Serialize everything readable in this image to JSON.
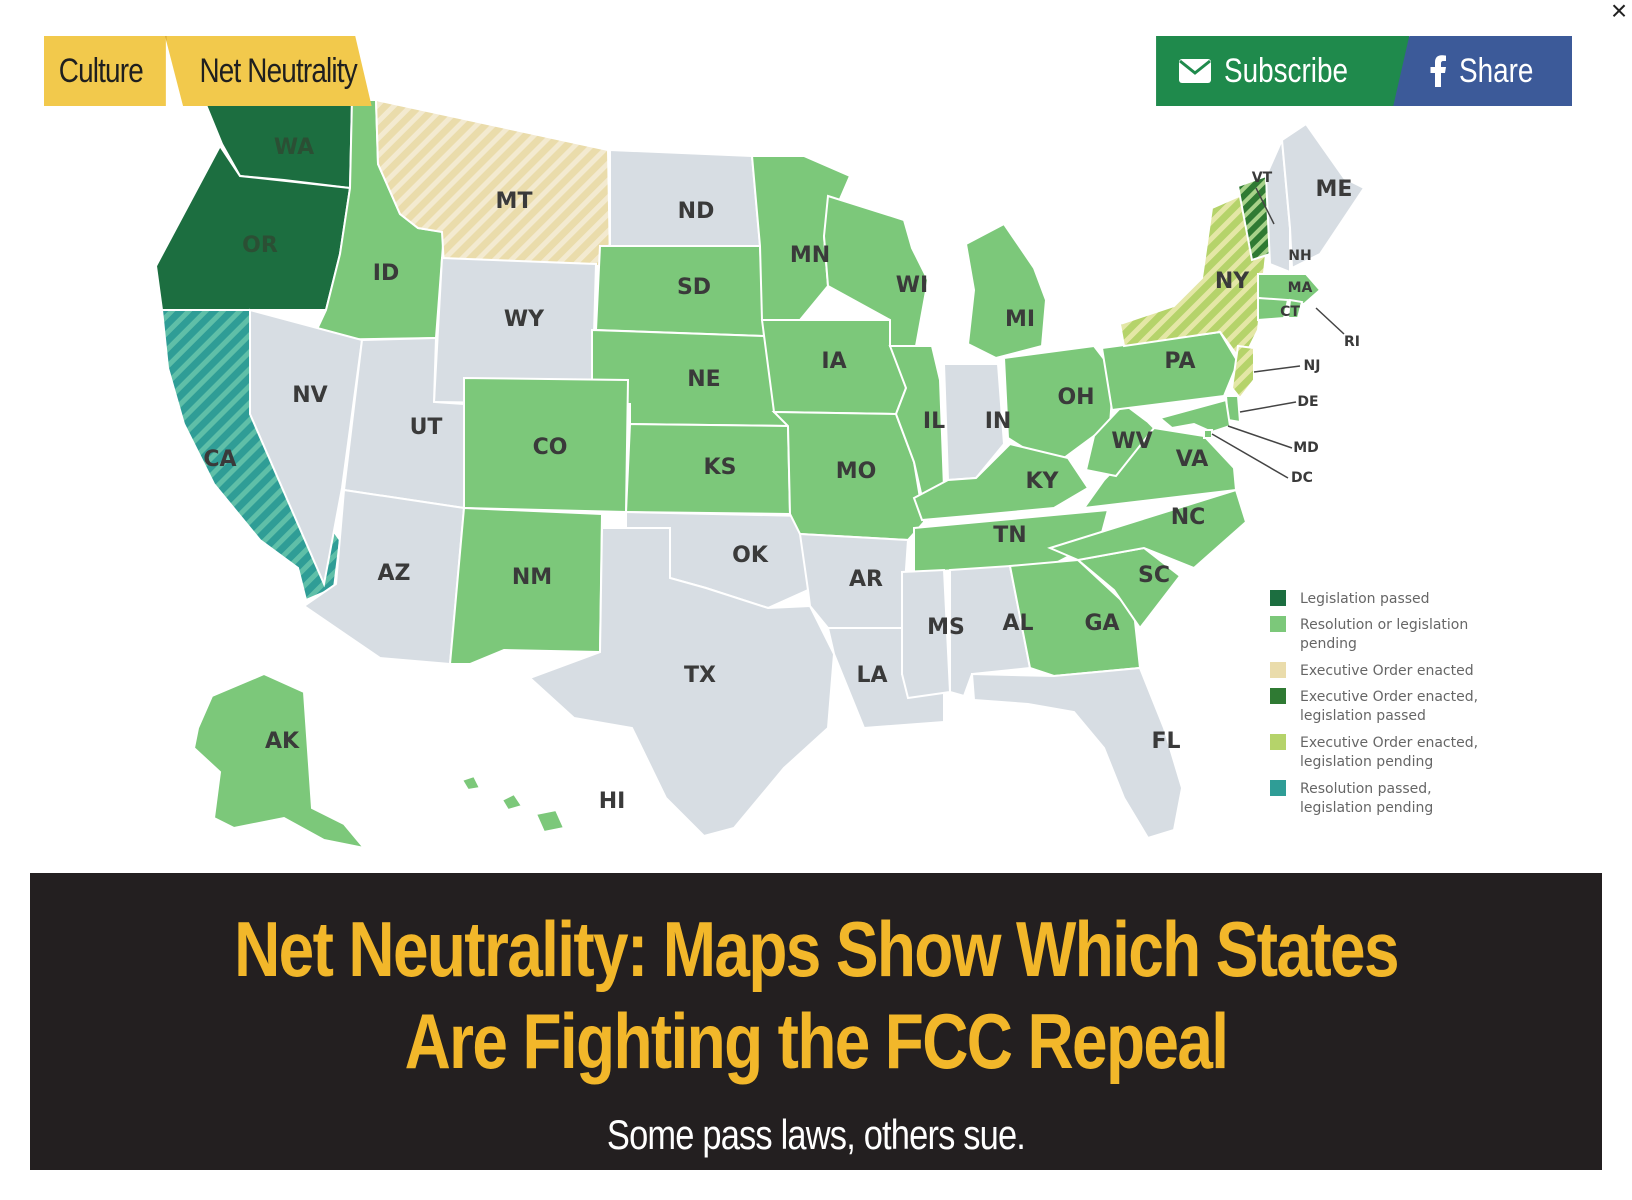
{
  "close": {
    "icon": "close-icon",
    "glyph": "×"
  },
  "breadcrumb": [
    {
      "label": "Culture"
    },
    {
      "label": "Net Neutrality"
    }
  ],
  "share_bar": {
    "subscribe_label": "Subscribe",
    "share_label": "Share",
    "subscribe_icon": "envelope-icon",
    "share_icon": "facebook-icon"
  },
  "map": {
    "colors": {
      "legislation_passed": "#1c6e40",
      "resolution_or_legislation_pending": "#7cc87a",
      "executive_order_enacted": "#eadcab",
      "eo_legislation_passed": "#2f7a33",
      "eo_legislation_pending": "#b5d36a",
      "resolution_passed_legislation_pending": "#2f9d96",
      "no_action": "#d7dde3"
    },
    "states": [
      {
        "code": "WA",
        "status": "legislation_passed"
      },
      {
        "code": "OR",
        "status": "legislation_passed"
      },
      {
        "code": "CA",
        "status": "resolution_passed_legislation_pending"
      },
      {
        "code": "ID",
        "status": "resolution_or_legislation_pending"
      },
      {
        "code": "MT",
        "status": "executive_order_enacted"
      },
      {
        "code": "ND",
        "status": "no_action"
      },
      {
        "code": "MN",
        "status": "resolution_or_legislation_pending"
      },
      {
        "code": "WI",
        "status": "resolution_or_legislation_pending"
      },
      {
        "code": "MI",
        "status": "resolution_or_legislation_pending"
      },
      {
        "code": "NV",
        "status": "no_action"
      },
      {
        "code": "UT",
        "status": "no_action"
      },
      {
        "code": "WY",
        "status": "no_action"
      },
      {
        "code": "SD",
        "status": "resolution_or_legislation_pending"
      },
      {
        "code": "NE",
        "status": "resolution_or_legislation_pending"
      },
      {
        "code": "IA",
        "status": "resolution_or_legislation_pending"
      },
      {
        "code": "IL",
        "status": "resolution_or_legislation_pending"
      },
      {
        "code": "IN",
        "status": "no_action"
      },
      {
        "code": "OH",
        "status": "resolution_or_legislation_pending"
      },
      {
        "code": "PA",
        "status": "resolution_or_legislation_pending"
      },
      {
        "code": "NY",
        "status": "eo_legislation_pending"
      },
      {
        "code": "VT",
        "status": "eo_legislation_passed"
      },
      {
        "code": "NH",
        "status": "no_action"
      },
      {
        "code": "ME",
        "status": "no_action"
      },
      {
        "code": "MA",
        "status": "resolution_or_legislation_pending"
      },
      {
        "code": "CT",
        "status": "resolution_or_legislation_pending"
      },
      {
        "code": "RI",
        "status": "resolution_or_legislation_pending"
      },
      {
        "code": "NJ",
        "status": "eo_legislation_pending"
      },
      {
        "code": "DE",
        "status": "resolution_or_legislation_pending"
      },
      {
        "code": "MD",
        "status": "resolution_or_legislation_pending"
      },
      {
        "code": "DC",
        "status": "resolution_or_legislation_pending"
      },
      {
        "code": "CO",
        "status": "resolution_or_legislation_pending"
      },
      {
        "code": "KS",
        "status": "resolution_or_legislation_pending"
      },
      {
        "code": "MO",
        "status": "resolution_or_legislation_pending"
      },
      {
        "code": "KY",
        "status": "resolution_or_legislation_pending"
      },
      {
        "code": "WV",
        "status": "resolution_or_legislation_pending"
      },
      {
        "code": "VA",
        "status": "resolution_or_legislation_pending"
      },
      {
        "code": "NC",
        "status": "resolution_or_legislation_pending"
      },
      {
        "code": "TN",
        "status": "resolution_or_legislation_pending"
      },
      {
        "code": "SC",
        "status": "resolution_or_legislation_pending"
      },
      {
        "code": "GA",
        "status": "resolution_or_legislation_pending"
      },
      {
        "code": "AZ",
        "status": "no_action"
      },
      {
        "code": "NM",
        "status": "resolution_or_legislation_pending"
      },
      {
        "code": "OK",
        "status": "no_action"
      },
      {
        "code": "AR",
        "status": "no_action"
      },
      {
        "code": "TX",
        "status": "no_action"
      },
      {
        "code": "LA",
        "status": "no_action"
      },
      {
        "code": "MS",
        "status": "no_action"
      },
      {
        "code": "AL",
        "status": "no_action"
      },
      {
        "code": "FL",
        "status": "no_action"
      },
      {
        "code": "AK",
        "status": "resolution_or_legislation_pending"
      },
      {
        "code": "HI",
        "status": "resolution_or_legislation_pending"
      }
    ],
    "legend": [
      {
        "status": "legislation_passed",
        "lines": [
          "Legislation passed"
        ]
      },
      {
        "status": "resolution_or_legislation_pending",
        "lines": [
          "Resolution or legislation",
          "pending"
        ]
      },
      {
        "status": "executive_order_enacted",
        "lines": [
          "Executive Order enacted"
        ]
      },
      {
        "status": "eo_legislation_passed",
        "lines": [
          "Executive Order enacted,",
          "legislation passed"
        ]
      },
      {
        "status": "eo_legislation_pending",
        "lines": [
          "Executive Order enacted,",
          "legislation pending"
        ]
      },
      {
        "status": "resolution_passed_legislation_pending",
        "lines": [
          "Resolution passed,",
          "legislation pending"
        ]
      }
    ]
  },
  "article": {
    "headline": "Net Neutrality: Maps Show Which States Are Fighting the FCC Repeal",
    "subhead": "Some pass laws, others sue."
  }
}
